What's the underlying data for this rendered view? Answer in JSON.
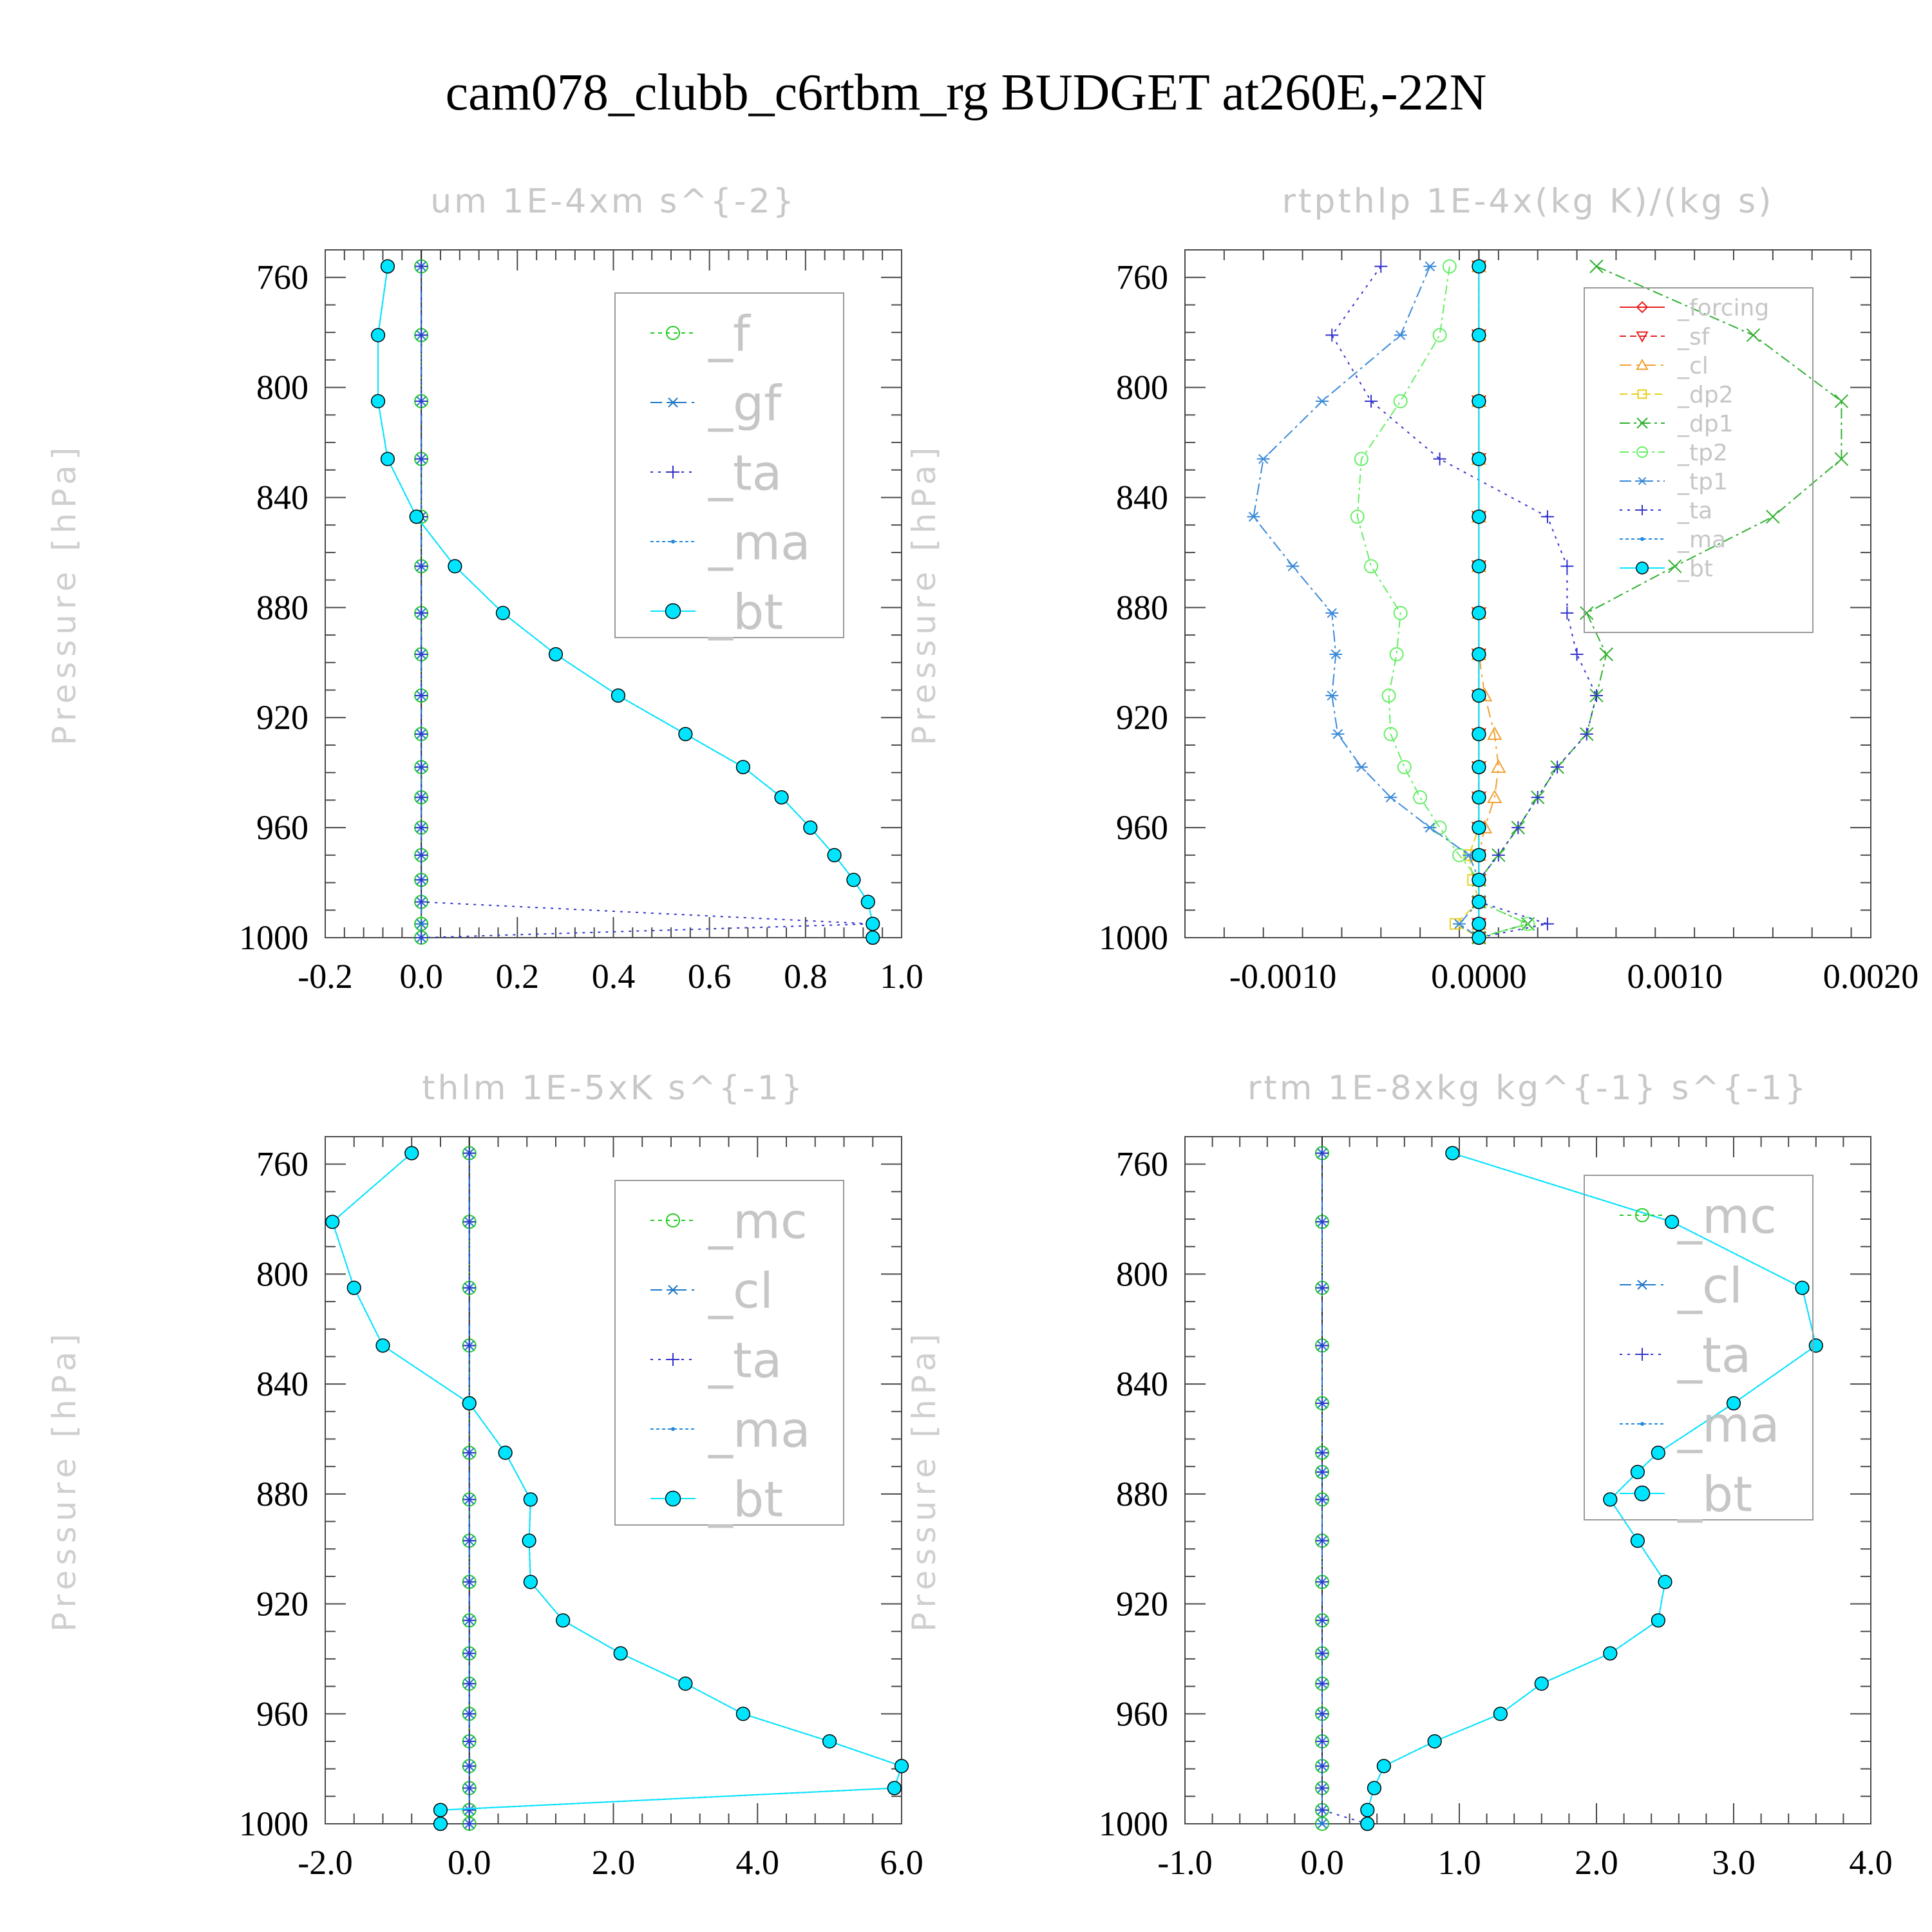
{
  "title": "cam078_clubb_c6rtbm_rg  BUDGET at260E,-22N",
  "chart_data": [
    {
      "type": "line",
      "title": "um  1E-4xm s^{-2}",
      "ylabel": "Pressure [hPa]",
      "xlim": [
        -0.2,
        1.0
      ],
      "xticks": [
        -0.2,
        0.0,
        0.2,
        0.4,
        0.6,
        0.8,
        1.0
      ],
      "xtick_labels": [
        "-0.2",
        "0.0",
        "0.2",
        "0.4",
        "0.6",
        "0.8",
        "1.0"
      ],
      "ylim": [
        750,
        1000
      ],
      "y_inverted": true,
      "yticks": [
        760,
        800,
        840,
        880,
        920,
        960,
        1000
      ],
      "ytick_labels": [
        "760",
        "800",
        "840",
        "880",
        "920",
        "960",
        "1000"
      ],
      "legend_position": "top-right",
      "y": [
        756,
        781,
        805,
        826,
        847,
        865,
        882,
        897,
        912,
        926,
        938,
        949,
        960,
        970,
        979,
        987,
        995,
        1000
      ],
      "series": [
        {
          "name": "_f",
          "color": "#22cc22",
          "marker": "circle",
          "values": [
            0,
            0,
            0,
            0,
            0,
            0,
            0,
            0,
            0,
            0,
            0,
            0,
            0,
            0,
            0,
            0,
            0,
            0
          ]
        },
        {
          "name": "_gf",
          "color": "#1f77c8",
          "marker": "star",
          "values": [
            0,
            0,
            0,
            0,
            0,
            0,
            0,
            0,
            0,
            0,
            0,
            0,
            0,
            0,
            0,
            0,
            0,
            0
          ]
        },
        {
          "name": "_ta",
          "color": "#3333cc",
          "marker": "plus",
          "values": [
            0,
            0,
            0,
            0,
            0,
            0,
            0,
            0,
            0,
            0,
            0,
            0,
            0,
            0,
            0,
            0,
            0.94,
            0
          ]
        },
        {
          "name": "_ma",
          "color": "#2288dd",
          "marker": "dot",
          "values": [
            -0.07,
            -0.09,
            -0.09,
            -0.07,
            -0.01,
            0.07,
            0.17,
            0.28,
            0.41,
            0.55,
            0.67,
            0.75,
            0.81,
            0.86,
            0.9,
            0.93,
            0.94,
            0.94
          ]
        },
        {
          "name": "_bt",
          "color": "#00e5ff",
          "marker": "filled",
          "values": [
            -0.07,
            -0.09,
            -0.09,
            -0.07,
            -0.01,
            0.07,
            0.17,
            0.28,
            0.41,
            0.55,
            0.67,
            0.75,
            0.81,
            0.86,
            0.9,
            0.93,
            0.94,
            0.94
          ]
        }
      ]
    },
    {
      "type": "line",
      "title": "rtpthlp  1E-4x(kg K)/(kg s)",
      "ylabel": "Pressure [hPa]",
      "xlim": [
        -0.0015,
        0.002
      ],
      "xticks": [
        -0.001,
        0.0,
        0.001,
        0.002
      ],
      "xtick_labels": [
        "-0.0010",
        "0.0000",
        "0.0010",
        "0.0020"
      ],
      "ylim": [
        750,
        1000
      ],
      "y_inverted": true,
      "yticks": [
        760,
        800,
        840,
        880,
        920,
        960,
        1000
      ],
      "ytick_labels": [
        "760",
        "800",
        "840",
        "880",
        "920",
        "960",
        "1000"
      ],
      "legend_position": "top-right",
      "y": [
        756,
        781,
        805,
        826,
        847,
        865,
        882,
        897,
        912,
        926,
        938,
        949,
        960,
        970,
        979,
        987,
        995,
        1000
      ],
      "series": [
        {
          "name": "_forcing",
          "color": "#e62020",
          "marker": "diamond",
          "values": [
            0,
            0,
            0,
            0,
            0,
            0,
            0,
            0,
            0,
            0,
            0,
            0,
            0,
            0,
            0,
            0,
            0,
            0
          ]
        },
        {
          "name": "_sf",
          "color": "#e62020",
          "marker": "tri-down",
          "values": [
            0,
            0,
            0,
            0,
            0,
            0,
            0,
            0,
            0,
            0,
            0,
            0,
            0,
            0,
            0,
            0,
            0,
            0
          ]
        },
        {
          "name": "_cl",
          "color": "#f0a030",
          "marker": "tri-up",
          "values": [
            0,
            0,
            0,
            0,
            0,
            0,
            0,
            0,
            3e-05,
            8e-05,
            0.0001,
            8e-05,
            3e-05,
            0,
            0,
            0,
            0,
            0
          ]
        },
        {
          "name": "_dp2",
          "color": "#e8d020",
          "marker": "square",
          "values": [
            0,
            0,
            0,
            0,
            0,
            0,
            0,
            0,
            0,
            0,
            0,
            0,
            0,
            -5e-05,
            -3e-05,
            0,
            -0.00012,
            0
          ]
        },
        {
          "name": "_dp1",
          "color": "#30b030",
          "marker": "x",
          "values": [
            0.0006,
            0.0014,
            0.00185,
            0.00185,
            0.0015,
            0.001,
            0.00055,
            0.00065,
            0.0006,
            0.00055,
            0.0004,
            0.0003,
            0.0002,
            0.0001,
            0,
            0,
            0.00025,
            0
          ]
        },
        {
          "name": "_tp2",
          "color": "#66ee66",
          "marker": "circle",
          "values": [
            -0.00015,
            -0.0002,
            -0.0004,
            -0.0006,
            -0.00062,
            -0.00055,
            -0.0004,
            -0.00042,
            -0.00046,
            -0.00045,
            -0.00038,
            -0.0003,
            -0.0002,
            -0.0001,
            0,
            0,
            0.00025,
            0
          ]
        },
        {
          "name": "_tp1",
          "color": "#3a8ad8",
          "marker": "star",
          "values": [
            -0.00025,
            -0.0004,
            -0.0008,
            -0.0011,
            -0.00115,
            -0.00095,
            -0.00075,
            -0.00073,
            -0.00075,
            -0.00072,
            -0.0006,
            -0.00045,
            -0.00025,
            -5e-05,
            0,
            0,
            -0.0001,
            0
          ]
        },
        {
          "name": "_ta",
          "color": "#3333cc",
          "marker": "plus",
          "values": [
            -0.0005,
            -0.00075,
            -0.00055,
            -0.0002,
            0.00035,
            0.00045,
            0.00045,
            0.0005,
            0.0006,
            0.00055,
            0.0004,
            0.0003,
            0.0002,
            0.0001,
            0,
            0,
            0.00035,
            0
          ]
        },
        {
          "name": "_ma",
          "color": "#2288dd",
          "marker": "dot",
          "values": [
            0,
            0,
            0,
            0,
            0,
            0,
            0,
            0,
            0,
            0,
            0,
            0,
            0,
            0,
            0,
            0,
            0,
            0
          ]
        },
        {
          "name": "_bt",
          "color": "#00e5ff",
          "marker": "filled",
          "values": [
            0,
            0,
            0,
            0,
            0,
            0,
            0,
            0,
            0,
            0,
            0,
            0,
            0,
            0,
            0,
            0,
            0,
            0
          ]
        }
      ]
    },
    {
      "type": "line",
      "title": "thlm  1E-5xK s^{-1}",
      "ylabel": "Pressure [hPa]",
      "xlim": [
        -2.0,
        6.0
      ],
      "xticks": [
        -2.0,
        0.0,
        2.0,
        4.0,
        6.0
      ],
      "xtick_labels": [
        "-2.0",
        "0.0",
        "2.0",
        "4.0",
        "6.0"
      ],
      "ylim": [
        750,
        1000
      ],
      "y_inverted": true,
      "yticks": [
        760,
        800,
        840,
        880,
        920,
        960,
        1000
      ],
      "ytick_labels": [
        "760",
        "800",
        "840",
        "880",
        "920",
        "960",
        "1000"
      ],
      "legend_position": "top-right",
      "y": [
        756,
        781,
        805,
        826,
        847,
        865,
        882,
        897,
        912,
        926,
        938,
        949,
        960,
        970,
        979,
        987,
        995,
        1000
      ],
      "series": [
        {
          "name": "_mc",
          "color": "#22cc22",
          "marker": "circle",
          "values": [
            0,
            0,
            0,
            0,
            0,
            0,
            0,
            0,
            0,
            0,
            0,
            0,
            0,
            0,
            0,
            0,
            0,
            0
          ]
        },
        {
          "name": "_cl",
          "color": "#1f77c8",
          "marker": "star",
          "values": [
            0,
            0,
            0,
            0,
            0,
            0,
            0,
            0,
            0,
            0,
            0,
            0,
            0,
            0,
            0,
            0,
            0,
            0
          ]
        },
        {
          "name": "_ta",
          "color": "#3333cc",
          "marker": "plus",
          "values": [
            0,
            0,
            0,
            0,
            0,
            0,
            0,
            0,
            0,
            0,
            0,
            0,
            0,
            0,
            0,
            0,
            0,
            0
          ]
        },
        {
          "name": "_ma",
          "color": "#2288dd",
          "marker": "dot",
          "values": [
            -0.8,
            -1.9,
            -1.6,
            -1.2,
            0,
            0.5,
            0.85,
            0.83,
            0.85,
            1.3,
            2.1,
            3.0,
            3.8,
            5.0,
            6.0,
            5.9,
            -0.4,
            -0.4
          ]
        },
        {
          "name": "_bt",
          "color": "#00e5ff",
          "marker": "filled",
          "values": [
            -0.8,
            -1.9,
            -1.6,
            -1.2,
            0,
            0.5,
            0.85,
            0.83,
            0.85,
            1.3,
            2.1,
            3.0,
            3.8,
            5.0,
            6.0,
            5.9,
            -0.4,
            -0.4
          ]
        }
      ]
    },
    {
      "type": "line",
      "title": "rtm  1E-8xkg kg^{-1} s^{-1}",
      "ylabel": "Pressure [hPa]",
      "xlim": [
        -1.0,
        4.0
      ],
      "xticks": [
        -1.0,
        0.0,
        1.0,
        2.0,
        3.0,
        4.0
      ],
      "xtick_labels": [
        "-1.0",
        "0.0",
        "1.0",
        "2.0",
        "3.0",
        "4.0"
      ],
      "ylim": [
        750,
        1000
      ],
      "y_inverted": true,
      "yticks": [
        760,
        800,
        840,
        880,
        920,
        960,
        1000
      ],
      "ytick_labels": [
        "760",
        "800",
        "840",
        "880",
        "920",
        "960",
        "1000"
      ],
      "legend_position": "top-right",
      "y": [
        756,
        781,
        805,
        826,
        847,
        865,
        872,
        882,
        897,
        912,
        926,
        938,
        949,
        960,
        970,
        979,
        987,
        995,
        1000
      ],
      "series": [
        {
          "name": "_mc",
          "color": "#22cc22",
          "marker": "circle",
          "values": [
            0,
            0,
            0,
            0,
            0,
            0,
            0,
            0,
            0,
            0,
            0,
            0,
            0,
            0,
            0,
            0,
            0,
            0,
            0
          ]
        },
        {
          "name": "_cl",
          "color": "#1f77c8",
          "marker": "star",
          "values": [
            0,
            0,
            0,
            0,
            0,
            0,
            0,
            0,
            0,
            0,
            0,
            0,
            0,
            0,
            0,
            0,
            0,
            0,
            0
          ]
        },
        {
          "name": "_ta",
          "color": "#3333cc",
          "marker": "plus",
          "values": [
            0,
            0,
            0,
            0,
            0,
            0,
            0,
            0,
            0,
            0,
            0,
            0,
            0,
            0,
            0,
            0,
            0,
            0,
            0.33
          ]
        },
        {
          "name": "_ma",
          "color": "#2288dd",
          "marker": "dot",
          "values": [
            0.95,
            2.55,
            3.5,
            3.6,
            3.0,
            2.45,
            2.3,
            2.1,
            2.3,
            2.5,
            2.45,
            2.1,
            1.6,
            1.3,
            0.82,
            0.45,
            0.38,
            0.33,
            0.33
          ]
        },
        {
          "name": "_bt",
          "color": "#00e5ff",
          "marker": "filled",
          "values": [
            0.95,
            2.55,
            3.5,
            3.6,
            3.0,
            2.45,
            2.3,
            2.1,
            2.3,
            2.5,
            2.45,
            2.1,
            1.6,
            1.3,
            0.82,
            0.45,
            0.38,
            0.33,
            0.33
          ]
        }
      ]
    }
  ]
}
